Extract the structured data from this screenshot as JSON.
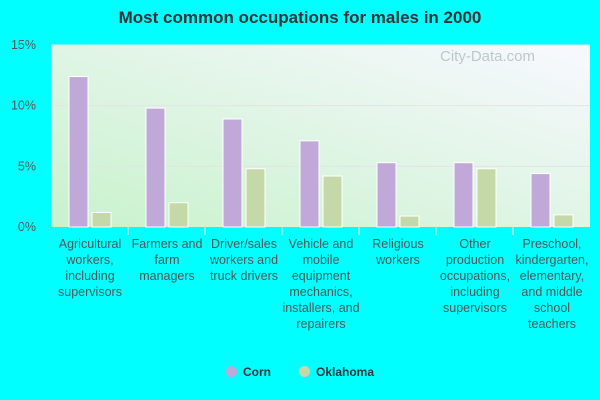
{
  "chart_data": {
    "type": "bar",
    "title": "Most common occupations for males in 2000",
    "categories": [
      "Agricultural workers, including supervisors",
      "Farmers and farm managers",
      "Driver/sales workers and truck drivers",
      "Vehicle and mobile equipment mechanics, installers, and repairers",
      "Religious workers",
      "Other production occupations, including supervisors",
      "Preschool, kindergarten, elementary, and middle school teachers"
    ],
    "series": [
      {
        "name": "Corn",
        "color": "#c0a8d8",
        "values": [
          12.4,
          9.8,
          8.9,
          7.1,
          5.3,
          5.3,
          4.4
        ]
      },
      {
        "name": "Oklahoma",
        "color": "#c4d8a8",
        "values": [
          1.2,
          2.0,
          4.8,
          4.2,
          0.9,
          4.8,
          1.0
        ]
      }
    ],
    "yticks": [
      "0%",
      "5%",
      "10%",
      "15%"
    ],
    "ylim": [
      0,
      15
    ],
    "grid": true,
    "legend": "bottom",
    "watermark": "City-Data.com"
  }
}
